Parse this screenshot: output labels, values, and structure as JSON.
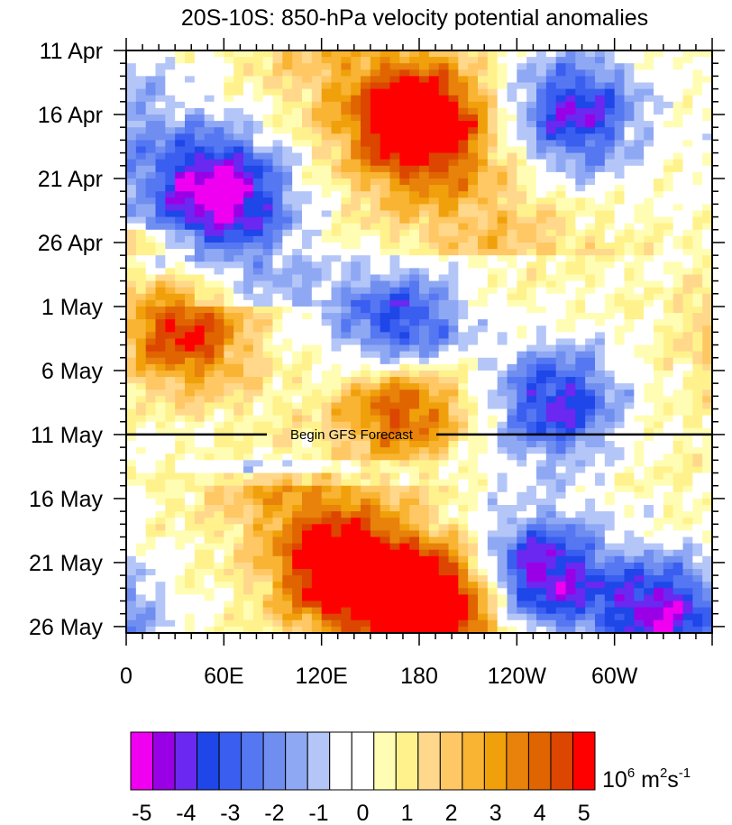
{
  "chart_data": {
    "type": "heatmap",
    "title": "20S-10S: 850-hPa velocity potential anomalies",
    "x_axis": {
      "tick_labels": [
        "0",
        "60E",
        "120E",
        "180",
        "120W",
        "60W"
      ],
      "tick_longitudes_deg_east": [
        0,
        60,
        120,
        180,
        240,
        300
      ],
      "range_deg_east": [
        0,
        360
      ]
    },
    "y_axis": {
      "tick_labels": [
        "11 Apr",
        "16 Apr",
        "21 Apr",
        "26 Apr",
        "1 May",
        "6 May",
        "11 May",
        "16 May",
        "21 May",
        "26 May"
      ],
      "tick_days_from_11Apr": [
        0,
        5,
        10,
        15,
        20,
        25,
        30,
        35,
        40,
        45
      ],
      "range_days": [
        0,
        45.5
      ],
      "reversed": true
    },
    "forecast_line": {
      "label": "Begin GFS Forecast",
      "day": 30
    },
    "colorbar": {
      "levels": [
        -5,
        -4.5,
        -4,
        -3.5,
        -3,
        -2.5,
        -2,
        -1.5,
        -1,
        -0.5,
        0,
        0.5,
        1,
        1.5,
        2,
        2.5,
        3,
        3.5,
        4,
        4.5,
        5
      ],
      "tick_labels": [
        "-5",
        "-4",
        "-3",
        "-2",
        "-1",
        "0",
        "1",
        "2",
        "3",
        "4",
        "5"
      ],
      "colors": [
        "#f000f0",
        "#9a00e6",
        "#6a28f0",
        "#1e46e8",
        "#3a5ef0",
        "#5577f2",
        "#6f8ef0",
        "#8fa8f4",
        "#b4c6f8",
        "#ffffff",
        "#ffffff",
        "#fffdb4",
        "#fff28c",
        "#ffd88c",
        "#ffc864",
        "#f8b432",
        "#f0a00a",
        "#e8820a",
        "#e06400",
        "#dc4600",
        "#ff0000"
      ],
      "unit_base": "10",
      "unit_exp": "6",
      "unit_body": " m",
      "unit_exp2": "2",
      "unit_tail": "s",
      "unit_exp3": "-1"
    },
    "features": [
      {
        "sign": "positive",
        "lon": 180,
        "day": 5.5,
        "peak": 5.2
      },
      {
        "sign": "positive",
        "lon": 35,
        "day": 22,
        "peak": 4.2
      },
      {
        "sign": "positive",
        "lon": 170,
        "day": 27.5,
        "peak": 5.0
      },
      {
        "sign": "positive",
        "lon": 190,
        "day": 43,
        "peak": 5.0
      },
      {
        "sign": "positive",
        "lon": 130,
        "day": 41,
        "peak": 4.0
      },
      {
        "sign": "negative",
        "lon": 60,
        "day": 11,
        "peak": -4.5
      },
      {
        "sign": "negative",
        "lon": 275,
        "day": 5,
        "peak": -4.5
      },
      {
        "sign": "negative",
        "lon": 170,
        "day": 22,
        "peak": -4.5
      },
      {
        "sign": "negative",
        "lon": 265,
        "day": 27.5,
        "peak": -4.5
      },
      {
        "sign": "negative",
        "lon": 255,
        "day": 41,
        "peak": -5.0
      },
      {
        "sign": "negative",
        "lon": 330,
        "day": 44,
        "peak": -5.0
      }
    ]
  }
}
